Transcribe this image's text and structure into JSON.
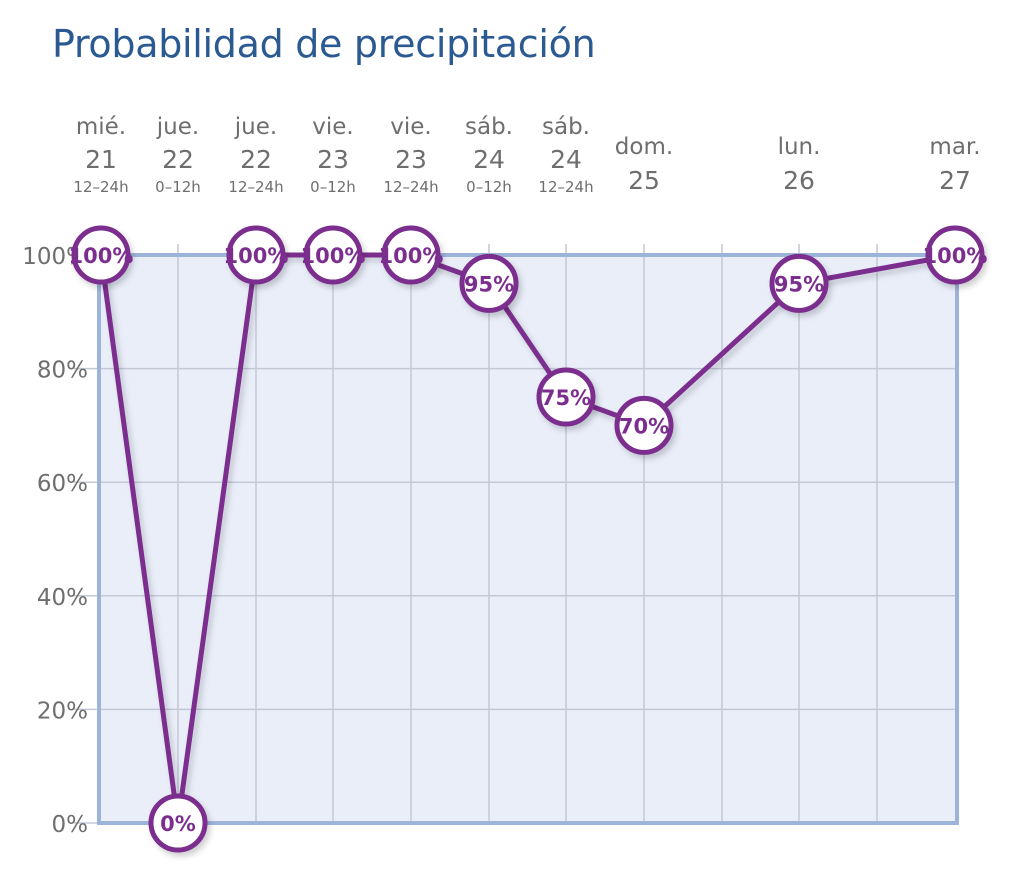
{
  "title": "Probabilidad de precipitación",
  "colors": {
    "title": "#2b5a93",
    "line": "#7b2e8e",
    "plot_background": "#e9eef9",
    "plot_border": "#9db4da",
    "grid": "#c4c9d6",
    "text": "#6e6e6e"
  },
  "chart_data": {
    "type": "line",
    "title": "Probabilidad de precipitación",
    "xlabel": "",
    "ylabel": "",
    "ylim": [
      0,
      100
    ],
    "grid": true,
    "yticks": [
      0,
      20,
      40,
      60,
      80,
      100
    ],
    "ytick_labels": [
      "0%",
      "20%",
      "40%",
      "60%",
      "80%",
      "100%"
    ],
    "categories": [
      {
        "day": "mié.",
        "date": "21",
        "range": "12–24h"
      },
      {
        "day": "jue.",
        "date": "22",
        "range": "0–12h"
      },
      {
        "day": "jue.",
        "date": "22",
        "range": "12–24h"
      },
      {
        "day": "vie.",
        "date": "23",
        "range": "0–12h"
      },
      {
        "day": "vie.",
        "date": "23",
        "range": "12–24h"
      },
      {
        "day": "sáb.",
        "date": "24",
        "range": "0–12h"
      },
      {
        "day": "sáb.",
        "date": "24",
        "range": "12–24h"
      },
      {
        "day": "dom.",
        "date": "25",
        "range": ""
      },
      {
        "day": "lun.",
        "date": "26",
        "range": ""
      },
      {
        "day": "mar.",
        "date": "27",
        "range": ""
      }
    ],
    "series": [
      {
        "values": [
          100,
          0,
          100,
          100,
          100,
          95,
          75,
          70,
          95,
          100
        ],
        "labels": [
          "100%",
          "0%",
          "100%",
          "100%",
          "100%",
          "95%",
          "75%",
          "70%",
          "95%",
          "100%"
        ]
      }
    ]
  }
}
